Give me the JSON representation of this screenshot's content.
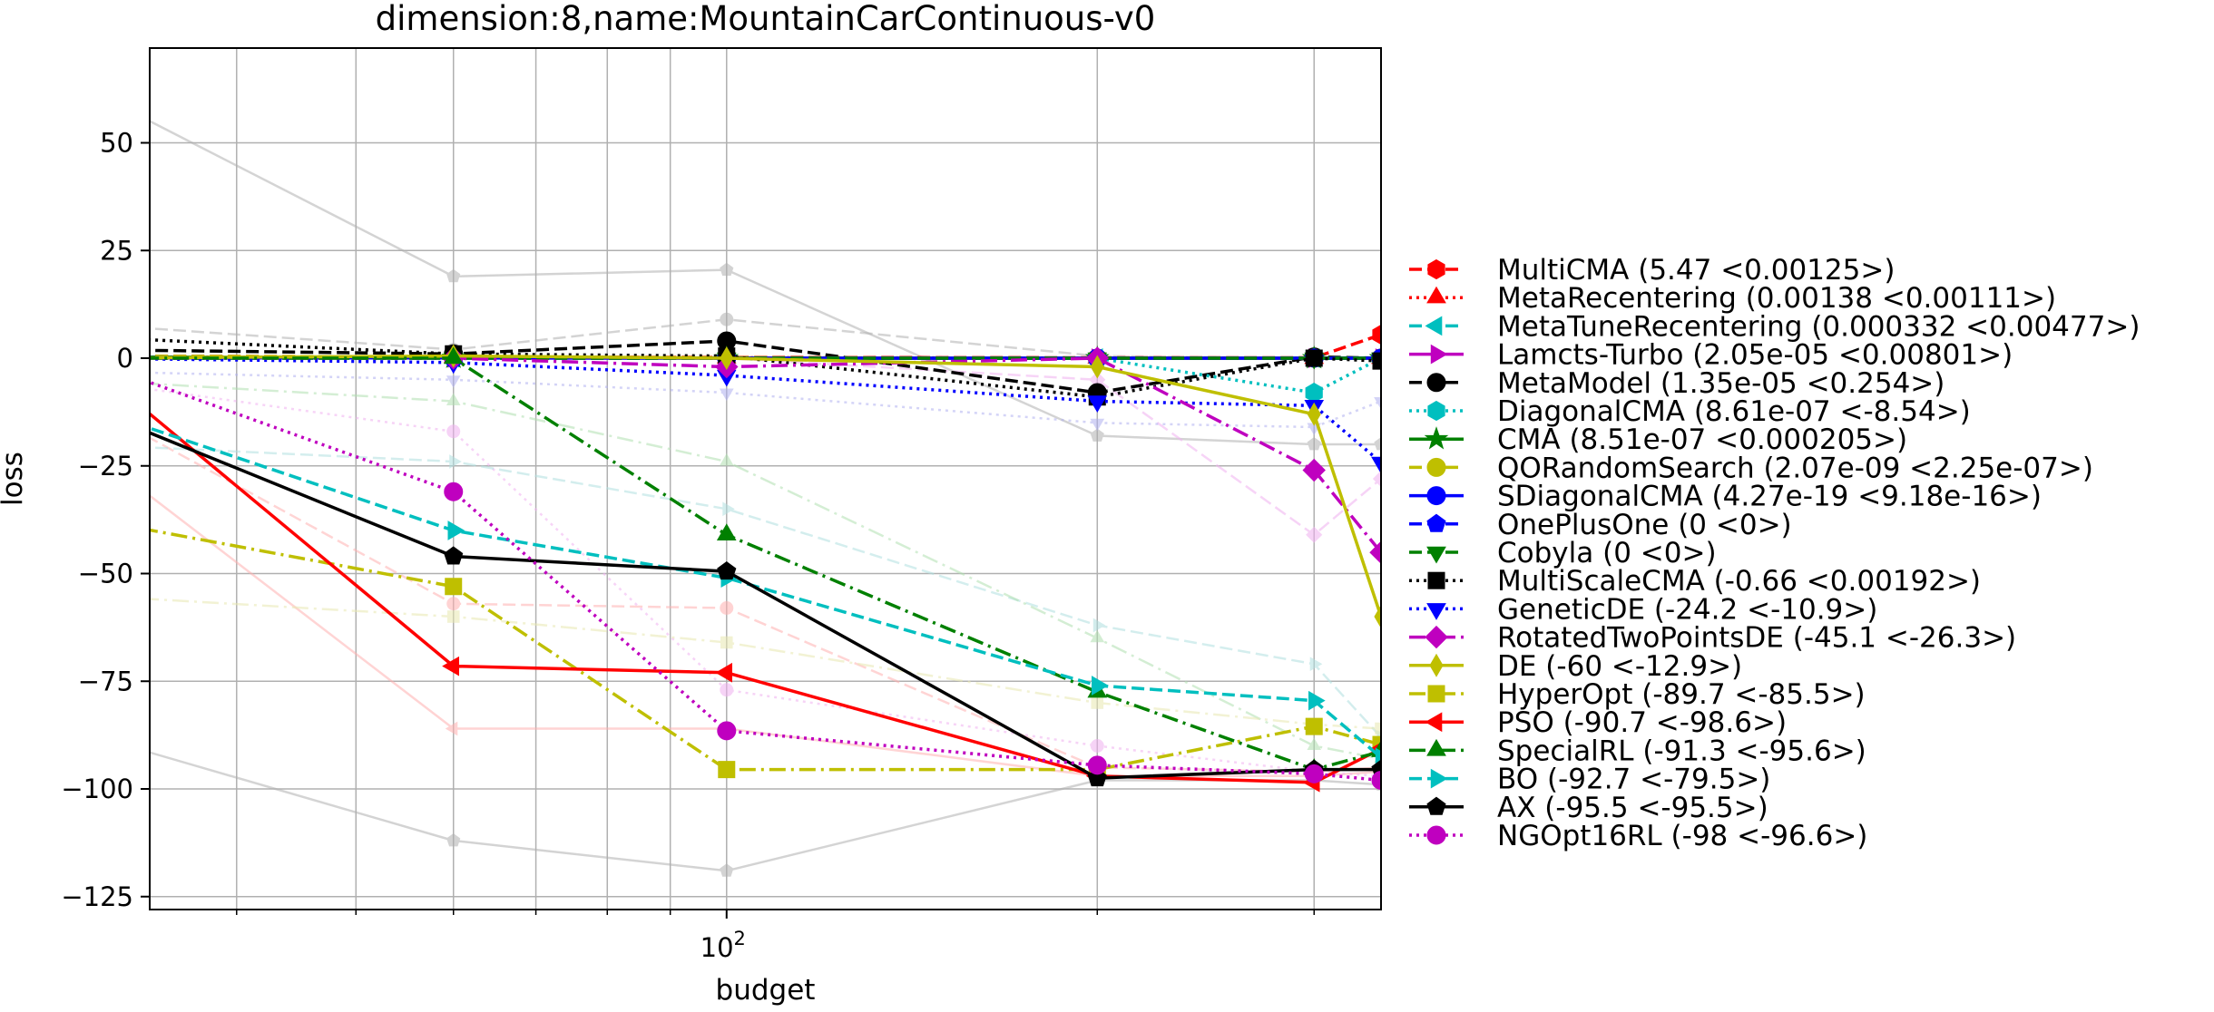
{
  "chart_data": {
    "type": "line",
    "title": "dimension:8,name:MountainCarContinuous-v0",
    "xlabel": "budget",
    "ylabel": "loss",
    "xscale": "log",
    "xlim": [
      34,
      340
    ],
    "ylim": [
      -128,
      72
    ],
    "x_ticks": [
      {
        "value": 100,
        "base": "10",
        "exp": "2"
      }
    ],
    "y_ticks": [
      {
        "value": 50,
        "label": "50"
      },
      {
        "value": 25,
        "label": "25"
      },
      {
        "value": 0,
        "label": "0"
      },
      {
        "value": -25,
        "label": "−25"
      },
      {
        "value": -50,
        "label": "−50"
      },
      {
        "value": -75,
        "label": "−75"
      },
      {
        "value": -100,
        "label": "−100"
      },
      {
        "value": -125,
        "label": "−125"
      }
    ],
    "grid": true,
    "legend_position": "outside-right",
    "x": [
      30,
      60,
      100,
      200,
      300,
      340
    ],
    "series": [
      {
        "name": "MultiCMA (5.47 <0.00125>)",
        "color": "#ff0000",
        "dash": "dashed",
        "marker": "hexagon",
        "values": [
          0.5,
          0.3,
          0.2,
          0.1,
          0.1,
          5.47
        ]
      },
      {
        "name": "MetaRecentering (0.00138 <0.00111>)",
        "color": "#ff0000",
        "dash": "dotted",
        "marker": "triangle-up",
        "values": [
          0.3,
          0.2,
          0.1,
          0.05,
          0.0,
          0.00138
        ]
      },
      {
        "name": "MetaTuneRecentering (0.000332 <0.00477>)",
        "color": "#00bfbf",
        "dash": "dashed",
        "marker": "triangle-left",
        "values": [
          0.2,
          0.1,
          0.05,
          0.02,
          0.01,
          0.000332
        ]
      },
      {
        "name": "Lamcts-Turbo (2.05e-05 <0.00801>)",
        "color": "#bf00bf",
        "dash": "solid",
        "marker": "triangle-right",
        "values": [
          0.1,
          0.05,
          0.02,
          0.01,
          0.0,
          2.05e-05
        ]
      },
      {
        "name": "MetaModel (1.35e-05 <0.254>)",
        "color": "#000000",
        "dash": "dashed",
        "marker": "circle",
        "values": [
          2.0,
          1.0,
          4.0,
          -8.0,
          0.3,
          1.35e-05
        ]
      },
      {
        "name": "DiagonalCMA (8.61e-07 <-8.54>)",
        "color": "#00bfbf",
        "dash": "dotted",
        "marker": "hexagon",
        "values": [
          0.2,
          0.1,
          0.0,
          0.0,
          -8.0,
          8.6e-07
        ]
      },
      {
        "name": "CMA (8.51e-07 <0.000205>)",
        "color": "#008000",
        "dash": "solid",
        "marker": "star",
        "values": [
          0.3,
          0.1,
          0.0,
          0.0,
          0.0,
          8.5e-07
        ]
      },
      {
        "name": "QORandomSearch (2.07e-09 <2.25e-07>)",
        "color": "#bfbf00",
        "dash": "dashed",
        "marker": "circle",
        "values": [
          0.5,
          0.3,
          0.1,
          0.0,
          0.0,
          0.0
        ]
      },
      {
        "name": "SDiagonalCMA (4.27e-19 <9.18e-16>)",
        "color": "#0000ff",
        "dash": "solid",
        "marker": "circle",
        "values": [
          0.1,
          0.05,
          0.0,
          0.0,
          0.0,
          0.0
        ]
      },
      {
        "name": "OnePlusOne (0 <0>)",
        "color": "#0000ff",
        "dash": "dashed",
        "marker": "pentagon",
        "values": [
          0.0,
          0.0,
          0.0,
          0.0,
          0.0,
          0.0
        ]
      },
      {
        "name": "Cobyla (0 <0>)",
        "color": "#008000",
        "dash": "dashed",
        "marker": "triangle-down",
        "values": [
          0.0,
          0.0,
          0.0,
          0.0,
          0.0,
          0.0
        ]
      },
      {
        "name": "MultiScaleCMA (-0.66 <0.00192>)",
        "color": "#000000",
        "dash": "dotted",
        "marker": "square",
        "values": [
          5.0,
          1.0,
          0.5,
          -9.0,
          0.0,
          -0.66
        ]
      },
      {
        "name": "GeneticDE (-24.2 <-10.9>)",
        "color": "#0000ff",
        "dash": "dotted",
        "marker": "triangle-down",
        "values": [
          0.0,
          -1.0,
          -4.0,
          -10.0,
          -11.0,
          -24.2
        ]
      },
      {
        "name": "RotatedTwoPointsDE (-45.1 <-26.3>)",
        "color": "#bf00bf",
        "dash": "dashdot",
        "marker": "diamond",
        "values": [
          0.0,
          0.0,
          -2.0,
          0.0,
          -26.0,
          -45.1
        ]
      },
      {
        "name": "DE (-60 <-12.9>)",
        "color": "#bfbf00",
        "dash": "solid",
        "marker": "thin-diamond",
        "values": [
          0.0,
          0.5,
          0.0,
          -2.0,
          -13.0,
          -60.0
        ]
      },
      {
        "name": "HyperOpt (-89.7 <-85.5>)",
        "color": "#bfbf00",
        "dash": "dashdot",
        "marker": "square",
        "values": [
          -37.0,
          -53.0,
          -95.5,
          -95.5,
          -85.5,
          -89.7
        ]
      },
      {
        "name": "PSO (-90.7 <-98.6>)",
        "color": "#ff0000",
        "dash": "solid",
        "marker": "triangle-left",
        "values": [
          0.0,
          -71.5,
          -73.0,
          -97.0,
          -98.5,
          -90.7
        ]
      },
      {
        "name": "SpecialRL (-91.3 <-95.6>)",
        "color": "#008000",
        "dash": "dashdot",
        "marker": "triangle-up",
        "values": [
          0.0,
          0.0,
          -41.0,
          -77.5,
          -95.5,
          -91.3
        ]
      },
      {
        "name": "BO (-92.7 <-79.5>)",
        "color": "#00bfbf",
        "dash": "dashed",
        "marker": "triangle-right",
        "values": [
          -11.0,
          -40.0,
          -51.0,
          -76.0,
          -79.5,
          -92.7
        ]
      },
      {
        "name": "AX (-95.5 <-95.5>)",
        "color": "#000000",
        "dash": "solid",
        "marker": "pentagon",
        "values": [
          -11.0,
          -46.0,
          -49.5,
          -97.5,
          -95.5,
          -95.5
        ]
      },
      {
        "name": "NGOpt16RL (-98 <-96.6>)",
        "color": "#bf00bf",
        "dash": "dotted",
        "marker": "circle",
        "values": [
          0.0,
          -31.0,
          -86.5,
          -94.5,
          -96.5,
          -98.0
        ]
      }
    ],
    "background_series": [
      {
        "color": "#b0b0b0",
        "dash": "solid",
        "marker": "pentagon",
        "values": [
          63.0,
          19.0,
          20.5,
          -18.0,
          -20.0,
          -20.0
        ]
      },
      {
        "color": "#b0b0b0",
        "dash": "solid",
        "marker": "pentagon",
        "values": [
          -87.0,
          -112.0,
          -119.0,
          -98.0,
          -98.0,
          -99.0
        ]
      },
      {
        "color": "#b0b0b0",
        "dash": "dashed",
        "marker": "circle",
        "values": [
          8.0,
          2.0,
          9.0,
          0.5,
          0.0,
          0.0
        ]
      },
      {
        "color": "#ffb0b0",
        "dash": "solid",
        "marker": "triangle-left",
        "values": [
          -20.0,
          -86.0,
          -86.0,
          -97.0,
          -97.0,
          -96.0
        ]
      },
      {
        "color": "#ffb0b0",
        "dash": "dashed",
        "marker": "circle",
        "values": [
          -10.0,
          -57.0,
          -58.0,
          -95.0,
          -96.0,
          -95.0
        ]
      },
      {
        "color": "#f0b0f0",
        "dash": "dotted",
        "marker": "circle",
        "values": [
          -5.0,
          -17.0,
          -77.0,
          -90.0,
          -96.0,
          -97.0
        ]
      },
      {
        "color": "#f0b0f0",
        "dash": "dashed",
        "marker": "diamond",
        "values": [
          0.0,
          0.0,
          0.0,
          -5.0,
          -41.0,
          -28.0
        ]
      },
      {
        "color": "#b0e0e0",
        "dash": "dashed",
        "marker": "triangle-right",
        "values": [
          -20.0,
          -24.0,
          -35.0,
          -62.0,
          -71.0,
          -88.0
        ]
      },
      {
        "color": "#b0e0b0",
        "dash": "dashdot",
        "marker": "triangle-up",
        "values": [
          -5.0,
          -10.0,
          -24.0,
          -65.0,
          -90.0,
          -93.0
        ]
      },
      {
        "color": "#e8e8b0",
        "dash": "dashdot",
        "marker": "square",
        "values": [
          -55.0,
          -60.0,
          -66.0,
          -80.0,
          -85.0,
          -86.0
        ]
      },
      {
        "color": "#b0b0f0",
        "dash": "dotted",
        "marker": "triangle-down",
        "values": [
          -3.0,
          -5.0,
          -8.0,
          -15.0,
          -16.0,
          -10.0
        ]
      }
    ]
  }
}
